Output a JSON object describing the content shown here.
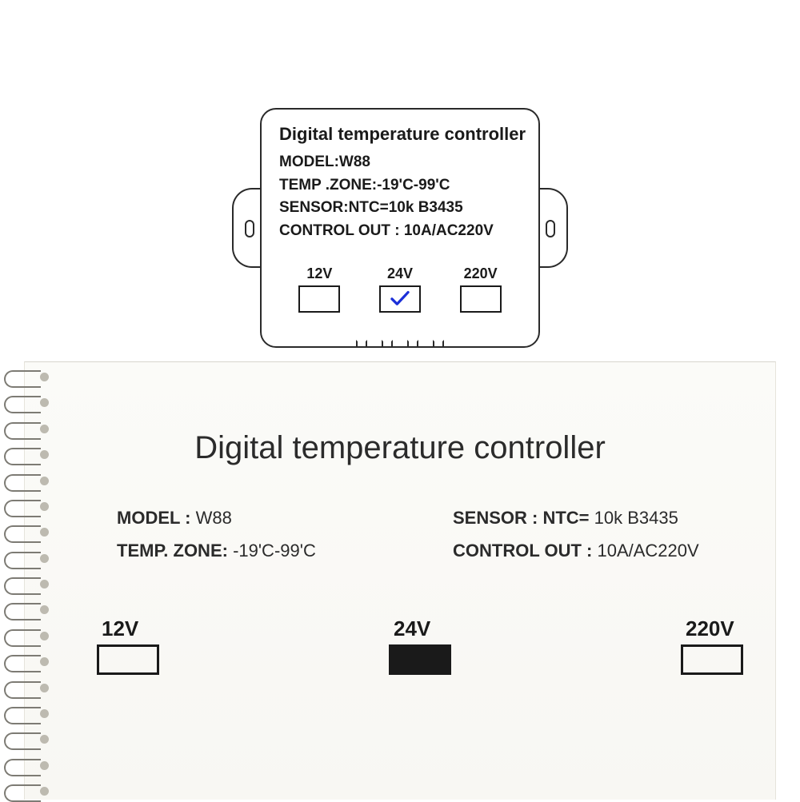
{
  "device": {
    "title": "Digital temperature controller",
    "specs": [
      {
        "label": "MODEL",
        "value": "W88",
        "sep": ":"
      },
      {
        "label": "TEMP .ZONE",
        "value": "-19'C-99'C",
        "sep": ":"
      },
      {
        "label": "SENSOR",
        "value": "NTC=10k B3435",
        "sep": ":"
      },
      {
        "label": "CONTROL OUT",
        "value": "10A/AC220V",
        "sep": " : "
      }
    ],
    "voltages": [
      {
        "label": "12V",
        "checked": false
      },
      {
        "label": "24V",
        "checked": true
      },
      {
        "label": "220V",
        "checked": false
      }
    ],
    "check_color": "#1b2fd8",
    "border_color": "#2a2a2a"
  },
  "notebook": {
    "title": "Digital temperature controller",
    "colA": [
      {
        "label": "MODEL : ",
        "value": "W88"
      },
      {
        "label": "TEMP. ZONE: ",
        "value": "-19'C-99'C"
      }
    ],
    "colB": [
      {
        "label": "SENSOR : NTC= ",
        "value": "10k B3435"
      },
      {
        "label": "CONTROL OUT : ",
        "value": "10A/AC220V"
      }
    ],
    "voltages": [
      {
        "label": "12V",
        "filled": false
      },
      {
        "label": "24V",
        "filled": true
      },
      {
        "label": "220V",
        "filled": false
      }
    ],
    "paper_bg": "#f8f7f3",
    "ring_color": "#7d7b74",
    "ring_count": 17
  }
}
